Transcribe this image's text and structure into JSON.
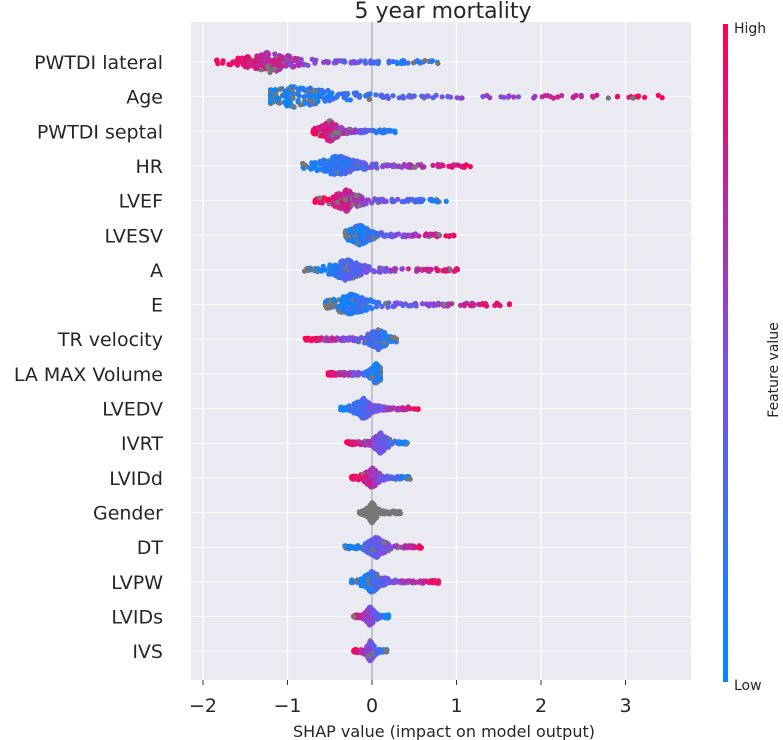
{
  "chart_data": {
    "type": "scatter",
    "subtype": "shap-beeswarm",
    "title": "5 year mortality",
    "xlabel": "SHAP value (impact on model output)",
    "xlim": [
      -2.2,
      3.7
    ],
    "xticks": [
      -2,
      -1,
      0,
      1,
      2,
      3
    ],
    "xtick_labels": [
      "−2",
      "−1",
      "0",
      "1",
      "2",
      "3"
    ],
    "grid": true,
    "colorbar": {
      "title": "Feature value",
      "high_label": "High",
      "low_label": "Low",
      "low_color": "#008bfb",
      "high_color": "#ff0052",
      "missing_color": "#777777"
    },
    "features": [
      {
        "name": "PWTDI lateral",
        "min": -1.85,
        "max": 0.78,
        "center": -1.2,
        "high_side": "left"
      },
      {
        "name": "Age",
        "min": -1.2,
        "max": 3.5,
        "center": -0.9,
        "high_side": "right"
      },
      {
        "name": "PWTDI septal",
        "min": -0.7,
        "max": 0.28,
        "center": -0.5,
        "high_side": "left"
      },
      {
        "name": "HR",
        "min": -0.82,
        "max": 1.2,
        "center": -0.4,
        "high_side": "right"
      },
      {
        "name": "LVEF",
        "min": -0.68,
        "max": 0.88,
        "center": -0.3,
        "high_side": "left"
      },
      {
        "name": "LVESV",
        "min": -0.32,
        "max": 0.98,
        "center": -0.15,
        "high_side": "right"
      },
      {
        "name": "A",
        "min": -0.8,
        "max": 1.03,
        "center": -0.3,
        "high_side": "right"
      },
      {
        "name": "E",
        "min": -0.55,
        "max": 1.65,
        "center": -0.25,
        "high_side": "right"
      },
      {
        "name": "TR velocity",
        "min": -0.8,
        "max": 0.32,
        "center": 0.07,
        "high_side": "left"
      },
      {
        "name": "LA MAX Volume",
        "min": -0.52,
        "max": 0.1,
        "center": 0.05,
        "high_side": "left"
      },
      {
        "name": "LVEDV",
        "min": -0.38,
        "max": 0.55,
        "center": -0.1,
        "high_side": "right"
      },
      {
        "name": "IVRT",
        "min": -0.3,
        "max": 0.42,
        "center": 0.1,
        "high_side": "left"
      },
      {
        "name": "LVIDd",
        "min": -0.25,
        "max": 0.48,
        "center": 0.0,
        "high_side": "left"
      },
      {
        "name": "Gender",
        "min": -0.15,
        "max": 0.35,
        "center": 0.0,
        "high_side": "none"
      },
      {
        "name": "DT",
        "min": -0.33,
        "max": 0.65,
        "center": 0.05,
        "high_side": "right"
      },
      {
        "name": "LVPW",
        "min": -0.25,
        "max": 0.8,
        "center": 0.0,
        "high_side": "right"
      },
      {
        "name": "LVIDs",
        "min": -0.22,
        "max": 0.2,
        "center": -0.02,
        "high_side": "left"
      },
      {
        "name": "IVS",
        "min": -0.22,
        "max": 0.18,
        "center": -0.02,
        "high_side": "left"
      }
    ]
  }
}
